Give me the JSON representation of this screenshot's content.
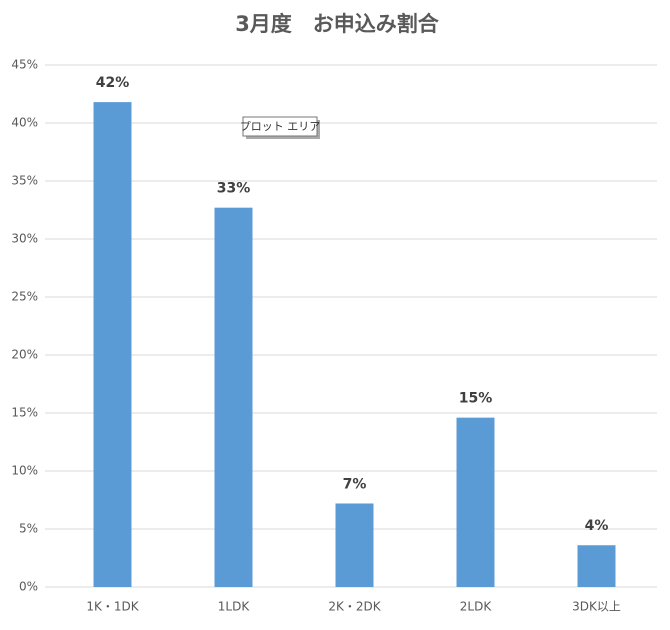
{
  "chart_data": {
    "type": "bar",
    "title": "3月度　お申込み割合",
    "categories": [
      "1K・1DK",
      "1LDK",
      "2K・2DK",
      "2LDK",
      "3DK以上"
    ],
    "values": [
      41.8,
      32.7,
      7.2,
      14.6,
      3.6
    ],
    "value_labels": [
      "42%",
      "33%",
      "7%",
      "15%",
      "4%"
    ],
    "color": "#5b9bd5",
    "ylim": [
      0,
      45
    ],
    "yticks": [
      {
        "value": 0,
        "label": "0%"
      },
      {
        "value": 5,
        "label": "5%"
      },
      {
        "value": 10,
        "label": "10%"
      },
      {
        "value": 15,
        "label": "15%"
      },
      {
        "value": 20,
        "label": "20%"
      },
      {
        "value": 25,
        "label": "25%"
      },
      {
        "value": 30,
        "label": "30%"
      },
      {
        "value": 35,
        "label": "35%"
      },
      {
        "value": 40,
        "label": "40%"
      },
      {
        "value": 45,
        "label": "45%"
      }
    ],
    "grid": true,
    "tooltip": "プロット エリア"
  }
}
